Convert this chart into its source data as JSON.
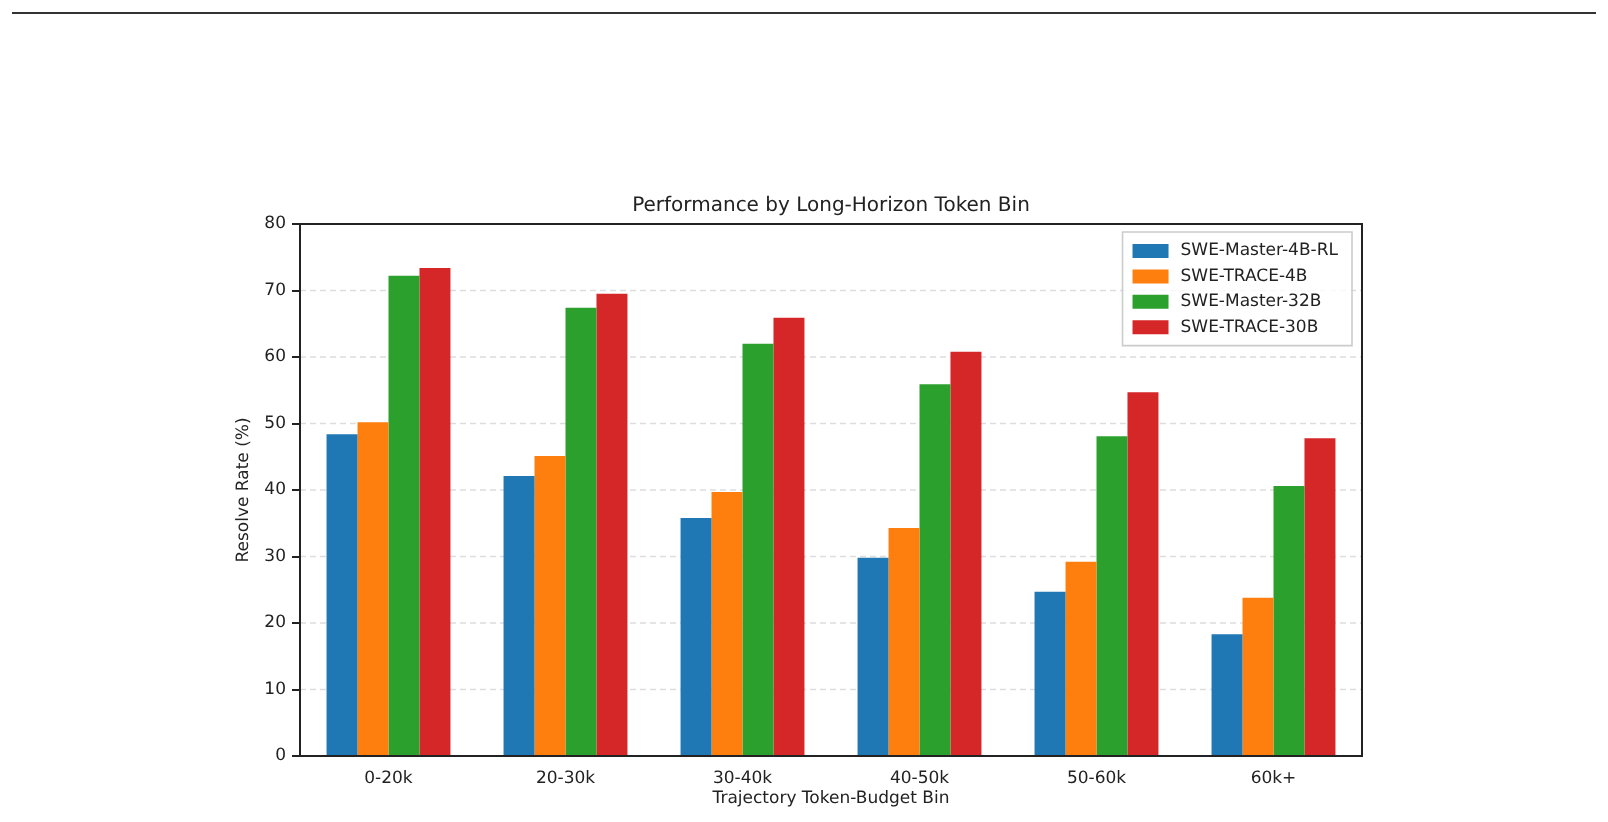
{
  "chart_data": {
    "type": "bar",
    "title": "Performance by Long-Horizon Token Bin",
    "xlabel": "Trajectory Token-Budget Bin",
    "ylabel": "Resolve Rate (%)",
    "categories": [
      "0-20k",
      "20-30k",
      "30-40k",
      "40-50k",
      "50-60k",
      "60k+"
    ],
    "series": [
      {
        "name": "SWE-Master-4B-RL",
        "color": "#1f77b4",
        "values": [
          48.4,
          42.1,
          35.8,
          29.8,
          24.7,
          18.3
        ]
      },
      {
        "name": "SWE-TRACE-4B",
        "color": "#ff7f0e",
        "values": [
          50.2,
          45.1,
          39.7,
          34.3,
          29.2,
          23.8
        ]
      },
      {
        "name": "SWE-Master-32B",
        "color": "#2ca02c",
        "values": [
          72.2,
          67.4,
          62.0,
          55.9,
          48.1,
          40.6
        ]
      },
      {
        "name": "SWE-TRACE-30B",
        "color": "#d62728",
        "values": [
          73.4,
          69.5,
          65.9,
          60.8,
          54.7,
          47.8
        ]
      }
    ],
    "ylim": [
      0,
      80
    ],
    "yticks": [
      0,
      10,
      20,
      30,
      40,
      50,
      60,
      70,
      80
    ],
    "grid": "y",
    "legend": "top right"
  }
}
